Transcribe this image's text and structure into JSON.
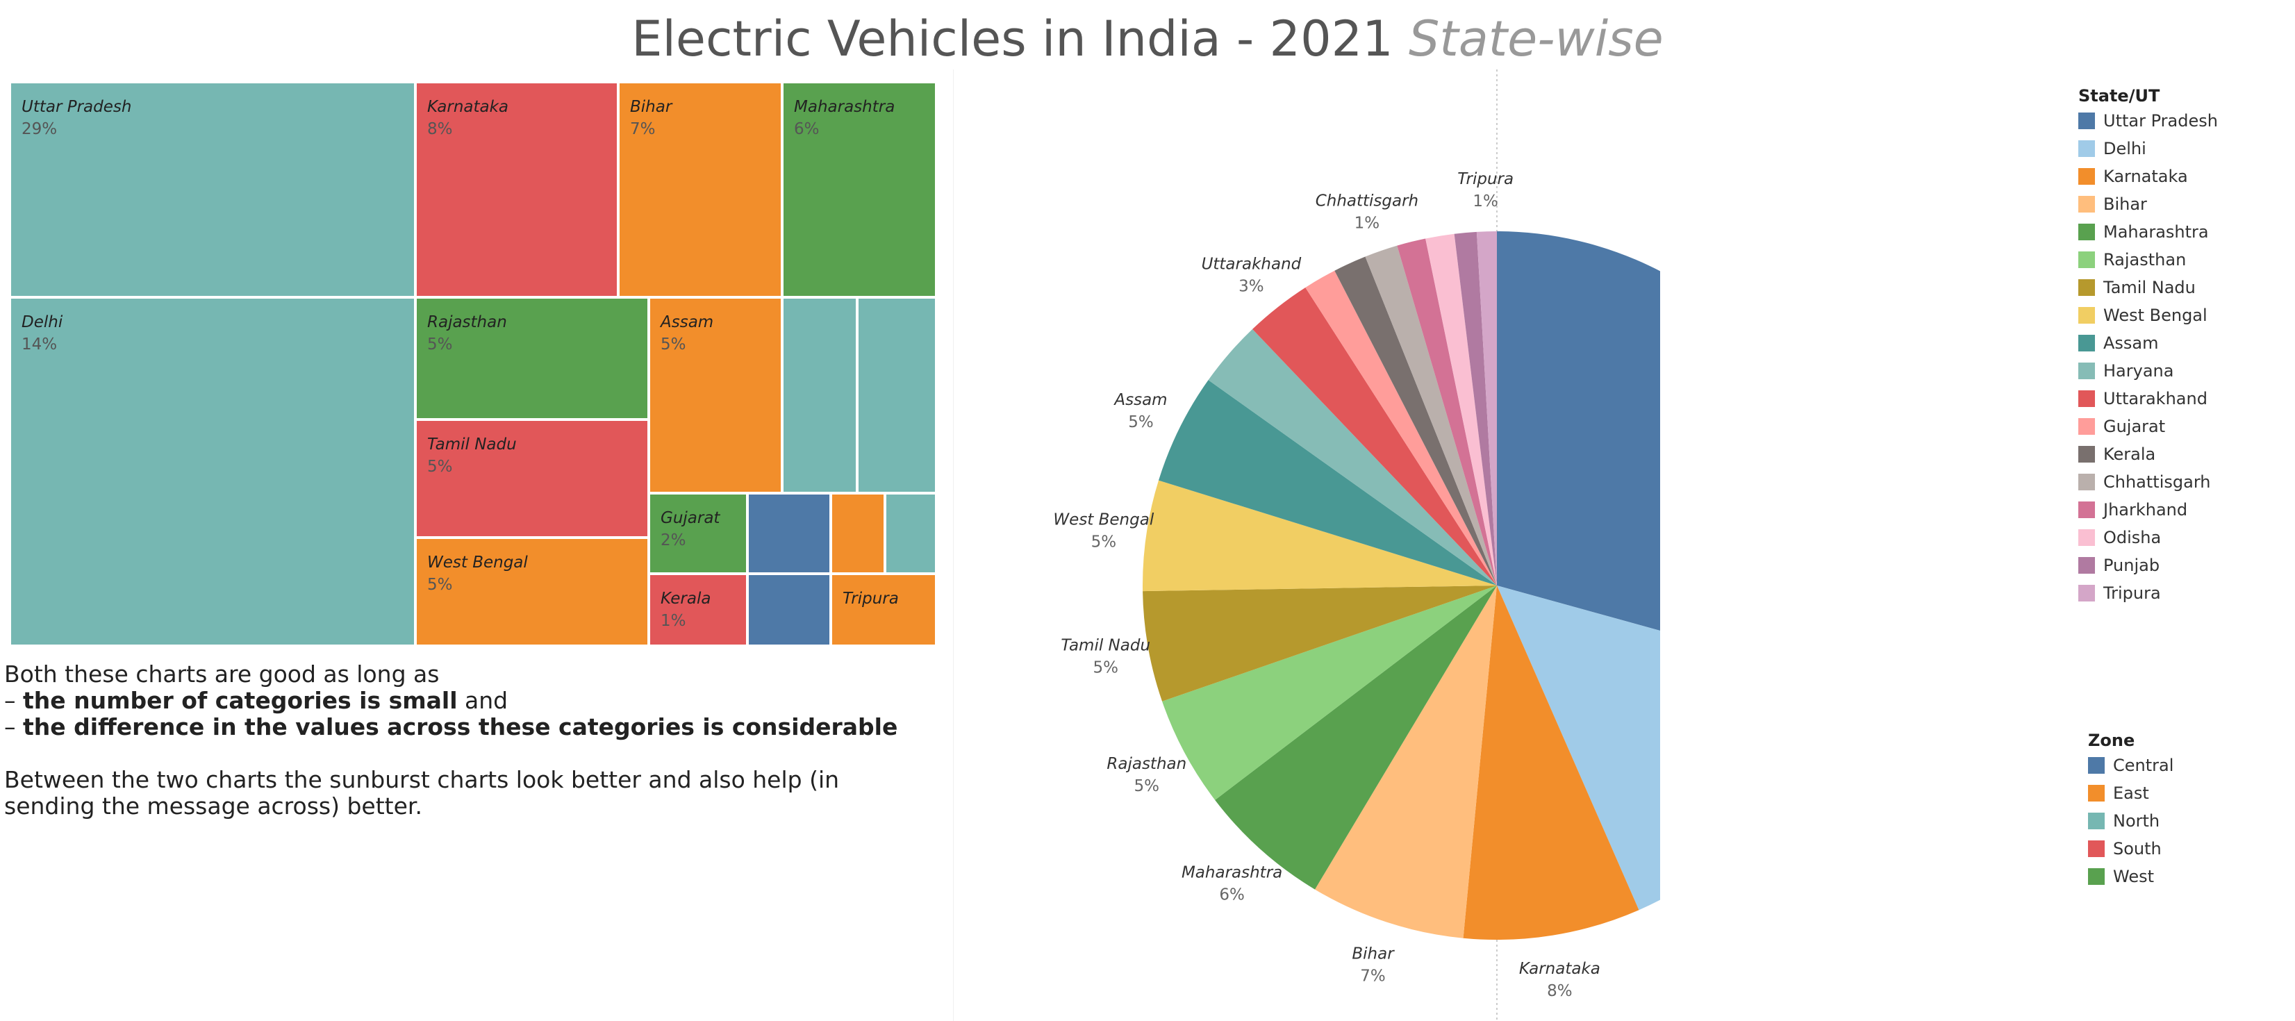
{
  "header": {
    "title_main": "Electric Vehicles in India - 2021",
    "title_sub": "State-wise"
  },
  "commentary": {
    "line1": "Both these charts are good as long as",
    "point1_prefix": "– ",
    "point1": "the number of categories is small",
    "point1_suffix": " and",
    "point2_prefix": "– ",
    "point2": "the difference in the values across these categories is considerable",
    "para2": "Between the two charts the sunburst charts look better and also help (in sending the message across) better."
  },
  "colors": {
    "Central": "#4e79a7",
    "East": "#f28e2b",
    "North": "#76b7b2",
    "South": "#e15759",
    "West": "#59a14f"
  },
  "chart_data": [
    {
      "type": "treemap",
      "color_by": "Zone",
      "items": [
        {
          "label": "Uttar Pradesh",
          "value": "29%",
          "zone": "North"
        },
        {
          "label": "Delhi",
          "value": "14%",
          "zone": "North"
        },
        {
          "label": "Karnataka",
          "value": "8%",
          "zone": "South"
        },
        {
          "label": "Bihar",
          "value": "7%",
          "zone": "East"
        },
        {
          "label": "Maharashtra",
          "value": "6%",
          "zone": "West"
        },
        {
          "label": "Rajasthan",
          "value": "5%",
          "zone": "West"
        },
        {
          "label": "Assam",
          "value": "5%",
          "zone": "East"
        },
        {
          "label": "Tamil Nadu",
          "value": "5%",
          "zone": "South"
        },
        {
          "label": "West Bengal",
          "value": "5%",
          "zone": "East"
        },
        {
          "label": "Gujarat",
          "value": "2%",
          "zone": "West"
        },
        {
          "label": "Kerala",
          "value": "1%",
          "zone": "South"
        },
        {
          "label": "Tripura",
          "value": "",
          "zone": "East"
        },
        {
          "label": "",
          "value": "",
          "zone": "North"
        },
        {
          "label": "",
          "value": "",
          "zone": "North"
        },
        {
          "label": "",
          "value": "",
          "zone": "Central"
        },
        {
          "label": "",
          "value": "",
          "zone": "Central"
        },
        {
          "label": "",
          "value": "",
          "zone": "East"
        },
        {
          "label": "",
          "value": "",
          "zone": "North"
        }
      ]
    },
    {
      "type": "pie",
      "color_by": "State/UT",
      "slices": [
        {
          "label": "Uttar Pradesh",
          "value": 29,
          "display": "29%",
          "color": "#4e79a7"
        },
        {
          "label": "Delhi",
          "value": 14,
          "display": "14%",
          "color": "#a0cbe8"
        },
        {
          "label": "Karnataka",
          "value": 8,
          "display": "8%",
          "color": "#f28e2b"
        },
        {
          "label": "Bihar",
          "value": 7,
          "display": "7%",
          "color": "#ffbe7d"
        },
        {
          "label": "Maharashtra",
          "value": 6,
          "display": "6%",
          "color": "#59a14f"
        },
        {
          "label": "Rajasthan",
          "value": 5,
          "display": "5%",
          "color": "#8cd17d"
        },
        {
          "label": "Tamil Nadu",
          "value": 5,
          "display": "5%",
          "color": "#b6992d"
        },
        {
          "label": "West Bengal",
          "value": 5,
          "display": "5%",
          "color": "#f1ce63"
        },
        {
          "label": "Assam",
          "value": 5,
          "display": "5%",
          "color": "#499894"
        },
        {
          "label": "Haryana",
          "value": 3,
          "display": "",
          "color": "#86bcb6"
        },
        {
          "label": "Uttarakhand",
          "value": 3,
          "display": "3%",
          "color": "#e15759"
        },
        {
          "label": "Gujarat",
          "value": 1.5,
          "display": "",
          "color": "#ff9d9a"
        },
        {
          "label": "Kerala",
          "value": 1.5,
          "display": "",
          "color": "#79706e"
        },
        {
          "label": "Chhattisgarh",
          "value": 1.5,
          "display": "1%",
          "color": "#bab0ac"
        },
        {
          "label": "Jharkhand",
          "value": 1.3,
          "display": "",
          "color": "#d37295"
        },
        {
          "label": "Odisha",
          "value": 1.3,
          "display": "",
          "color": "#fabfd2"
        },
        {
          "label": "Punjab",
          "value": 1,
          "display": "",
          "color": "#b07aa1"
        },
        {
          "label": "Tripura",
          "value": 0.9,
          "display": "1%",
          "color": "#d4a6c8"
        }
      ]
    }
  ],
  "legend_state": {
    "title": "State/UT",
    "items": [
      {
        "label": "Uttar Pradesh",
        "color": "#4e79a7"
      },
      {
        "label": "Delhi",
        "color": "#a0cbe8"
      },
      {
        "label": "Karnataka",
        "color": "#f28e2b"
      },
      {
        "label": "Bihar",
        "color": "#ffbe7d"
      },
      {
        "label": "Maharashtra",
        "color": "#59a14f"
      },
      {
        "label": "Rajasthan",
        "color": "#8cd17d"
      },
      {
        "label": "Tamil Nadu",
        "color": "#b6992d"
      },
      {
        "label": "West Bengal",
        "color": "#f1ce63"
      },
      {
        "label": "Assam",
        "color": "#499894"
      },
      {
        "label": "Haryana",
        "color": "#86bcb6"
      },
      {
        "label": "Uttarakhand",
        "color": "#e15759"
      },
      {
        "label": "Gujarat",
        "color": "#ff9d9a"
      },
      {
        "label": "Kerala",
        "color": "#79706e"
      },
      {
        "label": "Chhattisgarh",
        "color": "#bab0ac"
      },
      {
        "label": "Jharkhand",
        "color": "#d37295"
      },
      {
        "label": "Odisha",
        "color": "#fabfd2"
      },
      {
        "label": "Punjab",
        "color": "#b07aa1"
      },
      {
        "label": "Tripura",
        "color": "#d4a6c8"
      }
    ]
  },
  "legend_zone": {
    "title": "Zone",
    "items": [
      {
        "label": "Central",
        "color": "#4e79a7"
      },
      {
        "label": "East",
        "color": "#f28e2b"
      },
      {
        "label": "North",
        "color": "#76b7b2"
      },
      {
        "label": "South",
        "color": "#e15759"
      },
      {
        "label": "West",
        "color": "#59a14f"
      }
    ]
  }
}
